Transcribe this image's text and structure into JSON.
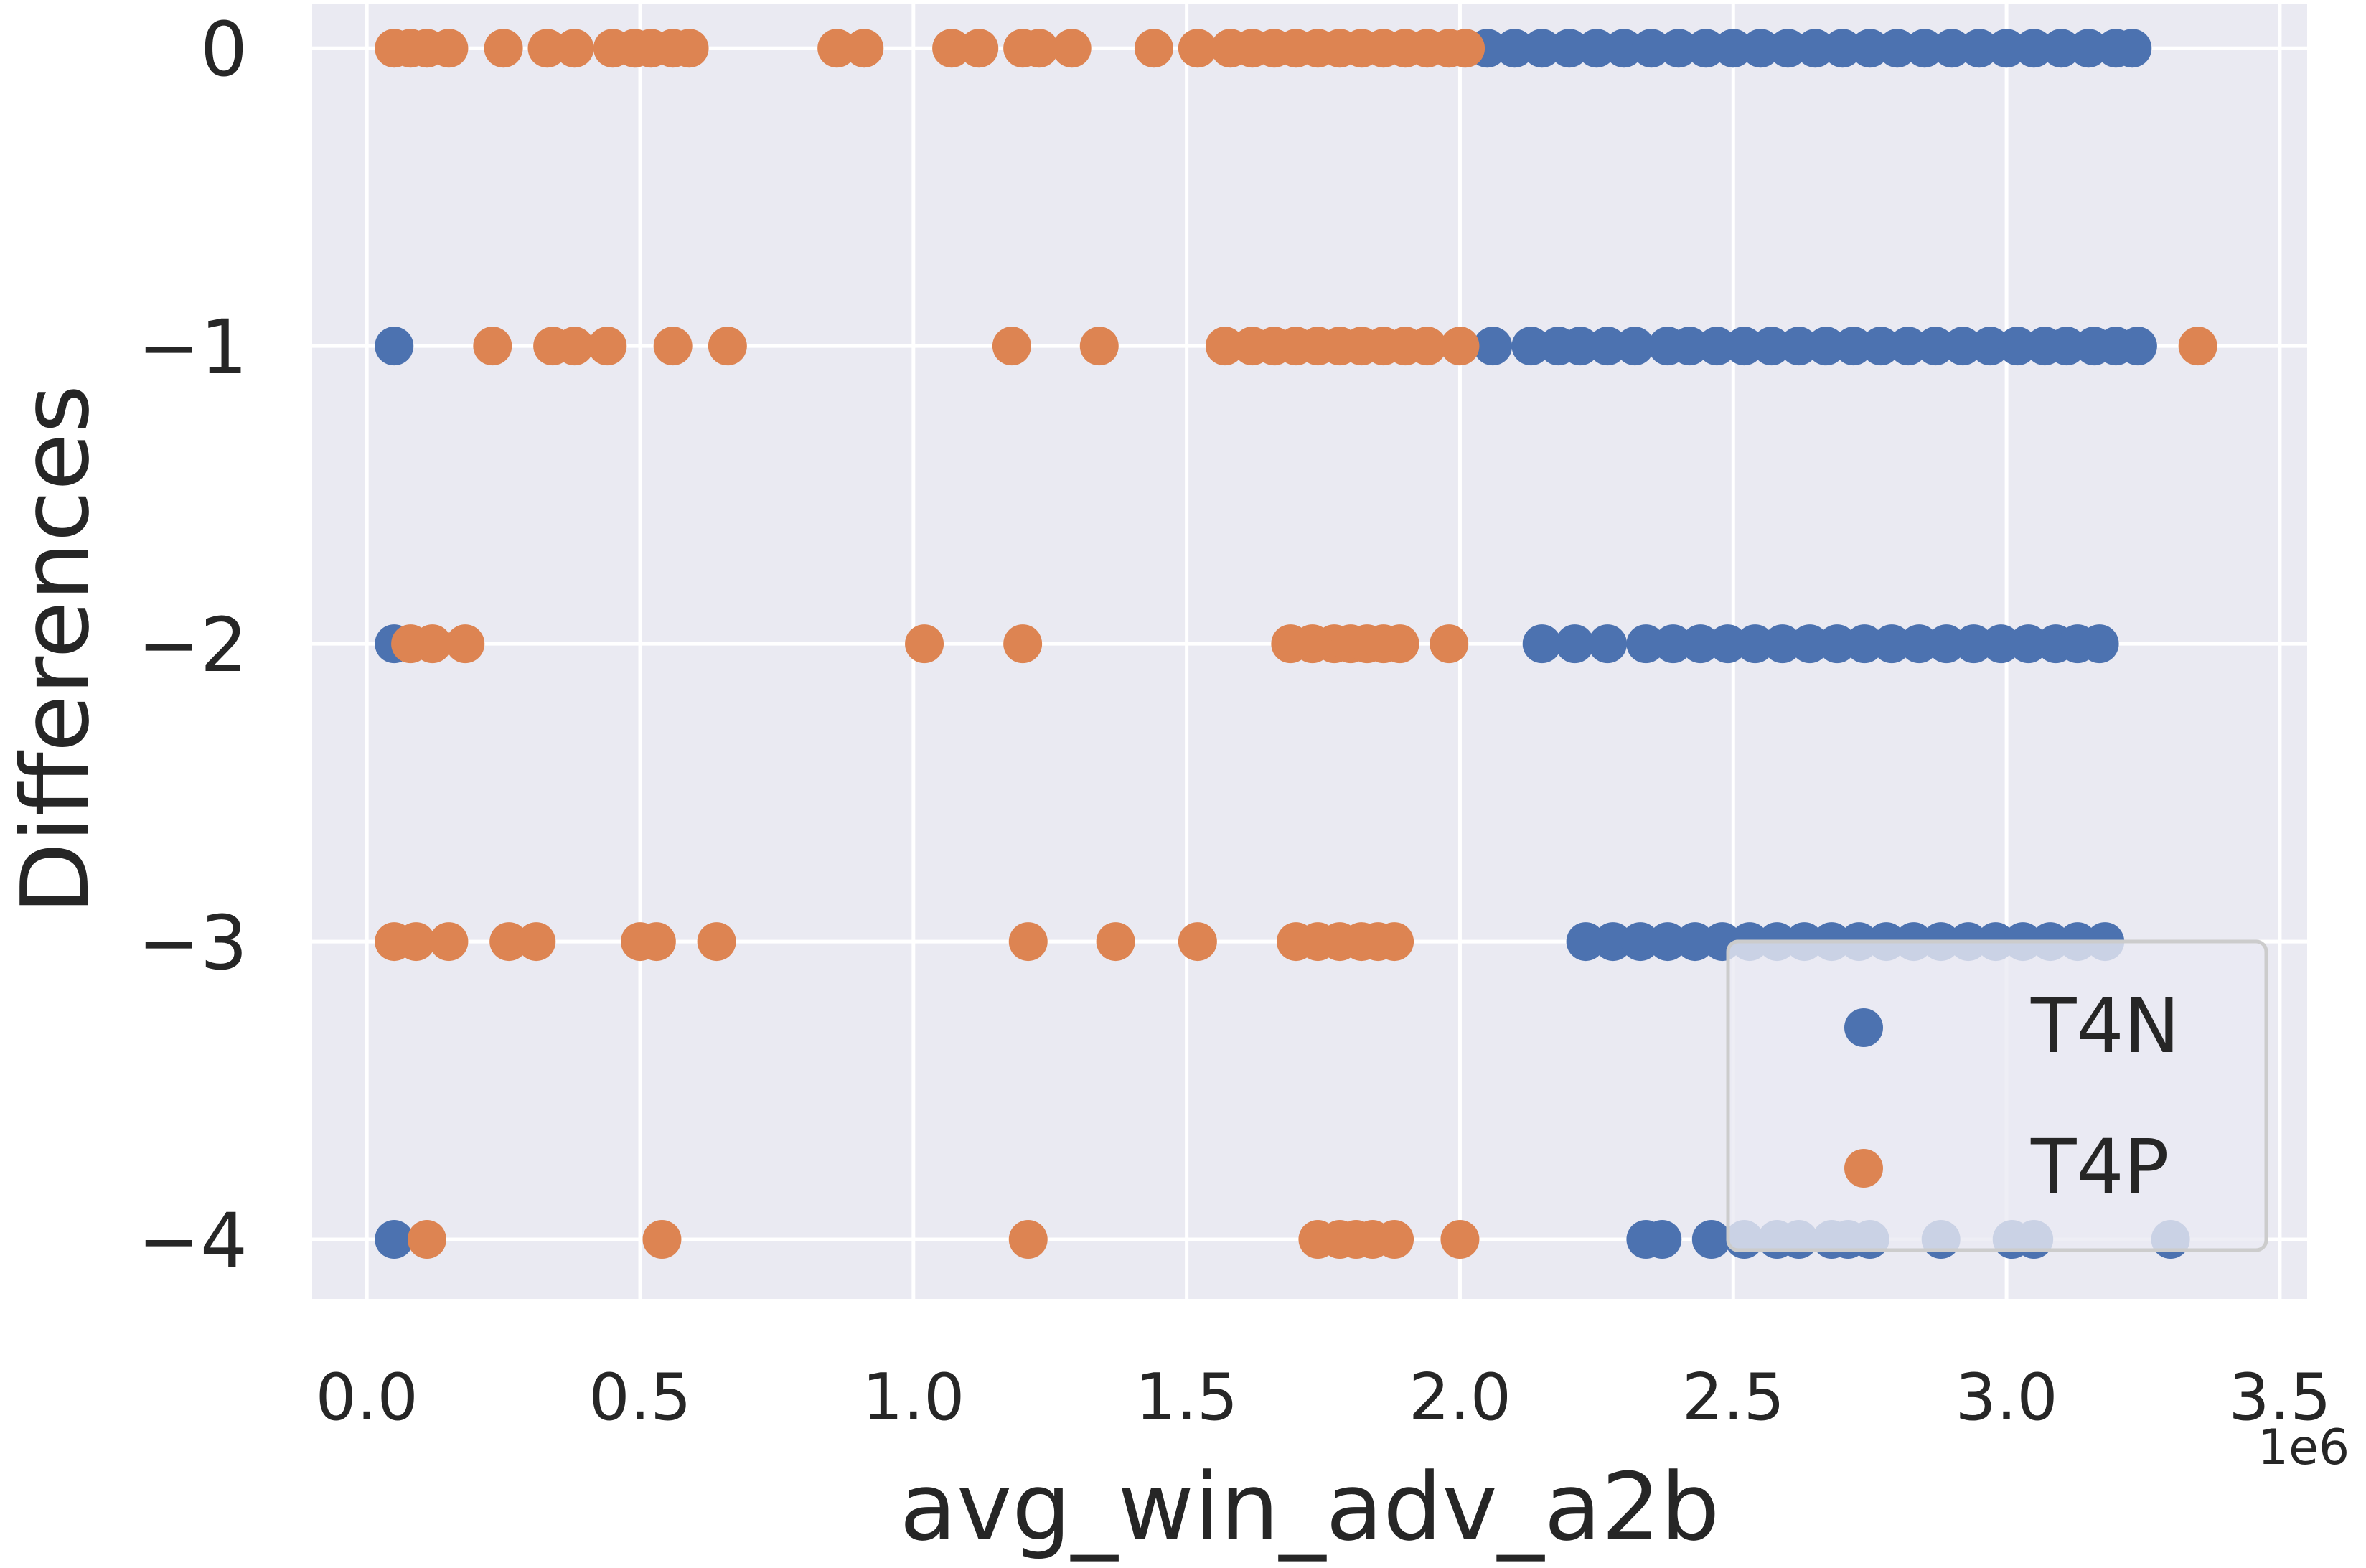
{
  "chart_data": {
    "type": "scatter",
    "title": "",
    "xlabel": "avg_win_adv_a2b",
    "ylabel": "Differences",
    "x_offset_text": "1e6",
    "x_scale_factor": 1000000,
    "xlim": [
      -100000,
      3550000
    ],
    "ylim": [
      -4.2,
      0.15
    ],
    "xticks": [
      0,
      500000,
      1000000,
      1500000,
      2000000,
      2500000,
      3000000,
      3500000
    ],
    "xtick_labels": [
      "0.0",
      "0.5",
      "1.0",
      "1.5",
      "2.0",
      "2.5",
      "3.0",
      "3.5"
    ],
    "yticks": [
      0,
      -1,
      -2,
      -3,
      -4
    ],
    "ytick_labels": [
      "0",
      "−1",
      "−2",
      "−3",
      "−4"
    ],
    "grid": true,
    "background": "#eaeaf2",
    "legend_position": "lower-right",
    "series": [
      {
        "name": "T4N",
        "color": "#4c72b0",
        "points": [
          [
            50000,
            -1
          ],
          [
            50000,
            -2
          ],
          [
            50000,
            -4
          ],
          [
            2050000,
            0
          ],
          [
            2100000,
            0
          ],
          [
            2150000,
            0
          ],
          [
            2200000,
            0
          ],
          [
            2250000,
            0
          ],
          [
            2300000,
            0
          ],
          [
            2350000,
            0
          ],
          [
            2400000,
            0
          ],
          [
            2450000,
            0
          ],
          [
            2500000,
            0
          ],
          [
            2550000,
            0
          ],
          [
            2600000,
            0
          ],
          [
            2650000,
            0
          ],
          [
            2700000,
            0
          ],
          [
            2750000,
            0
          ],
          [
            2800000,
            0
          ],
          [
            2850000,
            0
          ],
          [
            2900000,
            0
          ],
          [
            2950000,
            0
          ],
          [
            3000000,
            0
          ],
          [
            3050000,
            0
          ],
          [
            3100000,
            0
          ],
          [
            3150000,
            0
          ],
          [
            3200000,
            0
          ],
          [
            3230000,
            0
          ],
          [
            2060000,
            -1
          ],
          [
            2130000,
            -1
          ],
          [
            2180000,
            -1
          ],
          [
            2220000,
            -1
          ],
          [
            2270000,
            -1
          ],
          [
            2320000,
            -1
          ],
          [
            2380000,
            -1
          ],
          [
            2420000,
            -1
          ],
          [
            2470000,
            -1
          ],
          [
            2520000,
            -1
          ],
          [
            2570000,
            -1
          ],
          [
            2620000,
            -1
          ],
          [
            2670000,
            -1
          ],
          [
            2720000,
            -1
          ],
          [
            2770000,
            -1
          ],
          [
            2820000,
            -1
          ],
          [
            2870000,
            -1
          ],
          [
            2920000,
            -1
          ],
          [
            2970000,
            -1
          ],
          [
            3020000,
            -1
          ],
          [
            3070000,
            -1
          ],
          [
            3110000,
            -1
          ],
          [
            3160000,
            -1
          ],
          [
            3200000,
            -1
          ],
          [
            3240000,
            -1
          ],
          [
            2150000,
            -2
          ],
          [
            2210000,
            -2
          ],
          [
            2270000,
            -2
          ],
          [
            2340000,
            -2
          ],
          [
            2390000,
            -2
          ],
          [
            2440000,
            -2
          ],
          [
            2490000,
            -2
          ],
          [
            2540000,
            -2
          ],
          [
            2590000,
            -2
          ],
          [
            2640000,
            -2
          ],
          [
            2690000,
            -2
          ],
          [
            2740000,
            -2
          ],
          [
            2790000,
            -2
          ],
          [
            2840000,
            -2
          ],
          [
            2890000,
            -2
          ],
          [
            2940000,
            -2
          ],
          [
            2990000,
            -2
          ],
          [
            3040000,
            -2
          ],
          [
            3090000,
            -2
          ],
          [
            3130000,
            -2
          ],
          [
            3170000,
            -2
          ],
          [
            2230000,
            -3
          ],
          [
            2280000,
            -3
          ],
          [
            2330000,
            -3
          ],
          [
            2380000,
            -3
          ],
          [
            2430000,
            -3
          ],
          [
            2480000,
            -3
          ],
          [
            2530000,
            -3
          ],
          [
            2580000,
            -3
          ],
          [
            2630000,
            -3
          ],
          [
            2680000,
            -3
          ],
          [
            2730000,
            -3
          ],
          [
            2780000,
            -3
          ],
          [
            2830000,
            -3
          ],
          [
            2880000,
            -3
          ],
          [
            2930000,
            -3
          ],
          [
            2980000,
            -3
          ],
          [
            3030000,
            -3
          ],
          [
            3080000,
            -3
          ],
          [
            3130000,
            -3
          ],
          [
            3180000,
            -3
          ],
          [
            2340000,
            -4
          ],
          [
            2370000,
            -4
          ],
          [
            2460000,
            -4
          ],
          [
            2520000,
            -4
          ],
          [
            2580000,
            -4
          ],
          [
            2620000,
            -4
          ],
          [
            2680000,
            -4
          ],
          [
            2710000,
            -4
          ],
          [
            2750000,
            -4
          ],
          [
            2880000,
            -4
          ],
          [
            3010000,
            -4
          ],
          [
            3050000,
            -4
          ],
          [
            3300000,
            -4
          ]
        ]
      },
      {
        "name": "T4P",
        "color": "#dd8452",
        "points": [
          [
            50000,
            0
          ],
          [
            80000,
            0
          ],
          [
            110000,
            0
          ],
          [
            150000,
            0
          ],
          [
            250000,
            0
          ],
          [
            330000,
            0
          ],
          [
            380000,
            0
          ],
          [
            450000,
            0
          ],
          [
            490000,
            0
          ],
          [
            520000,
            0
          ],
          [
            560000,
            0
          ],
          [
            590000,
            0
          ],
          [
            860000,
            0
          ],
          [
            910000,
            0
          ],
          [
            1070000,
            0
          ],
          [
            1120000,
            0
          ],
          [
            1200000,
            0
          ],
          [
            1230000,
            0
          ],
          [
            1290000,
            0
          ],
          [
            1440000,
            0
          ],
          [
            1520000,
            0
          ],
          [
            1580000,
            0
          ],
          [
            1620000,
            0
          ],
          [
            1660000,
            0
          ],
          [
            1700000,
            0
          ],
          [
            1740000,
            0
          ],
          [
            1780000,
            0
          ],
          [
            1820000,
            0
          ],
          [
            1860000,
            0
          ],
          [
            1900000,
            0
          ],
          [
            1940000,
            0
          ],
          [
            1980000,
            0
          ],
          [
            2010000,
            0
          ],
          [
            230000,
            -1
          ],
          [
            340000,
            -1
          ],
          [
            380000,
            -1
          ],
          [
            440000,
            -1
          ],
          [
            560000,
            -1
          ],
          [
            660000,
            -1
          ],
          [
            1180000,
            -1
          ],
          [
            1340000,
            -1
          ],
          [
            1570000,
            -1
          ],
          [
            1620000,
            -1
          ],
          [
            1660000,
            -1
          ],
          [
            1700000,
            -1
          ],
          [
            1740000,
            -1
          ],
          [
            1780000,
            -1
          ],
          [
            1820000,
            -1
          ],
          [
            1860000,
            -1
          ],
          [
            1900000,
            -1
          ],
          [
            1940000,
            -1
          ],
          [
            2000000,
            -1
          ],
          [
            3350000,
            -1
          ],
          [
            80000,
            -2
          ],
          [
            120000,
            -2
          ],
          [
            180000,
            -2
          ],
          [
            1020000,
            -2
          ],
          [
            1200000,
            -2
          ],
          [
            1690000,
            -2
          ],
          [
            1730000,
            -2
          ],
          [
            1770000,
            -2
          ],
          [
            1800000,
            -2
          ],
          [
            1830000,
            -2
          ],
          [
            1860000,
            -2
          ],
          [
            1890000,
            -2
          ],
          [
            1980000,
            -2
          ],
          [
            50000,
            -3
          ],
          [
            90000,
            -3
          ],
          [
            150000,
            -3
          ],
          [
            260000,
            -3
          ],
          [
            310000,
            -3
          ],
          [
            500000,
            -3
          ],
          [
            530000,
            -3
          ],
          [
            640000,
            -3
          ],
          [
            1210000,
            -3
          ],
          [
            1370000,
            -3
          ],
          [
            1520000,
            -3
          ],
          [
            1700000,
            -3
          ],
          [
            1740000,
            -3
          ],
          [
            1780000,
            -3
          ],
          [
            1820000,
            -3
          ],
          [
            1850000,
            -3
          ],
          [
            1880000,
            -3
          ],
          [
            110000,
            -4
          ],
          [
            540000,
            -4
          ],
          [
            1210000,
            -4
          ],
          [
            1740000,
            -4
          ],
          [
            1780000,
            -4
          ],
          [
            1810000,
            -4
          ],
          [
            1840000,
            -4
          ],
          [
            1880000,
            -4
          ],
          [
            2000000,
            -4
          ]
        ]
      }
    ]
  }
}
